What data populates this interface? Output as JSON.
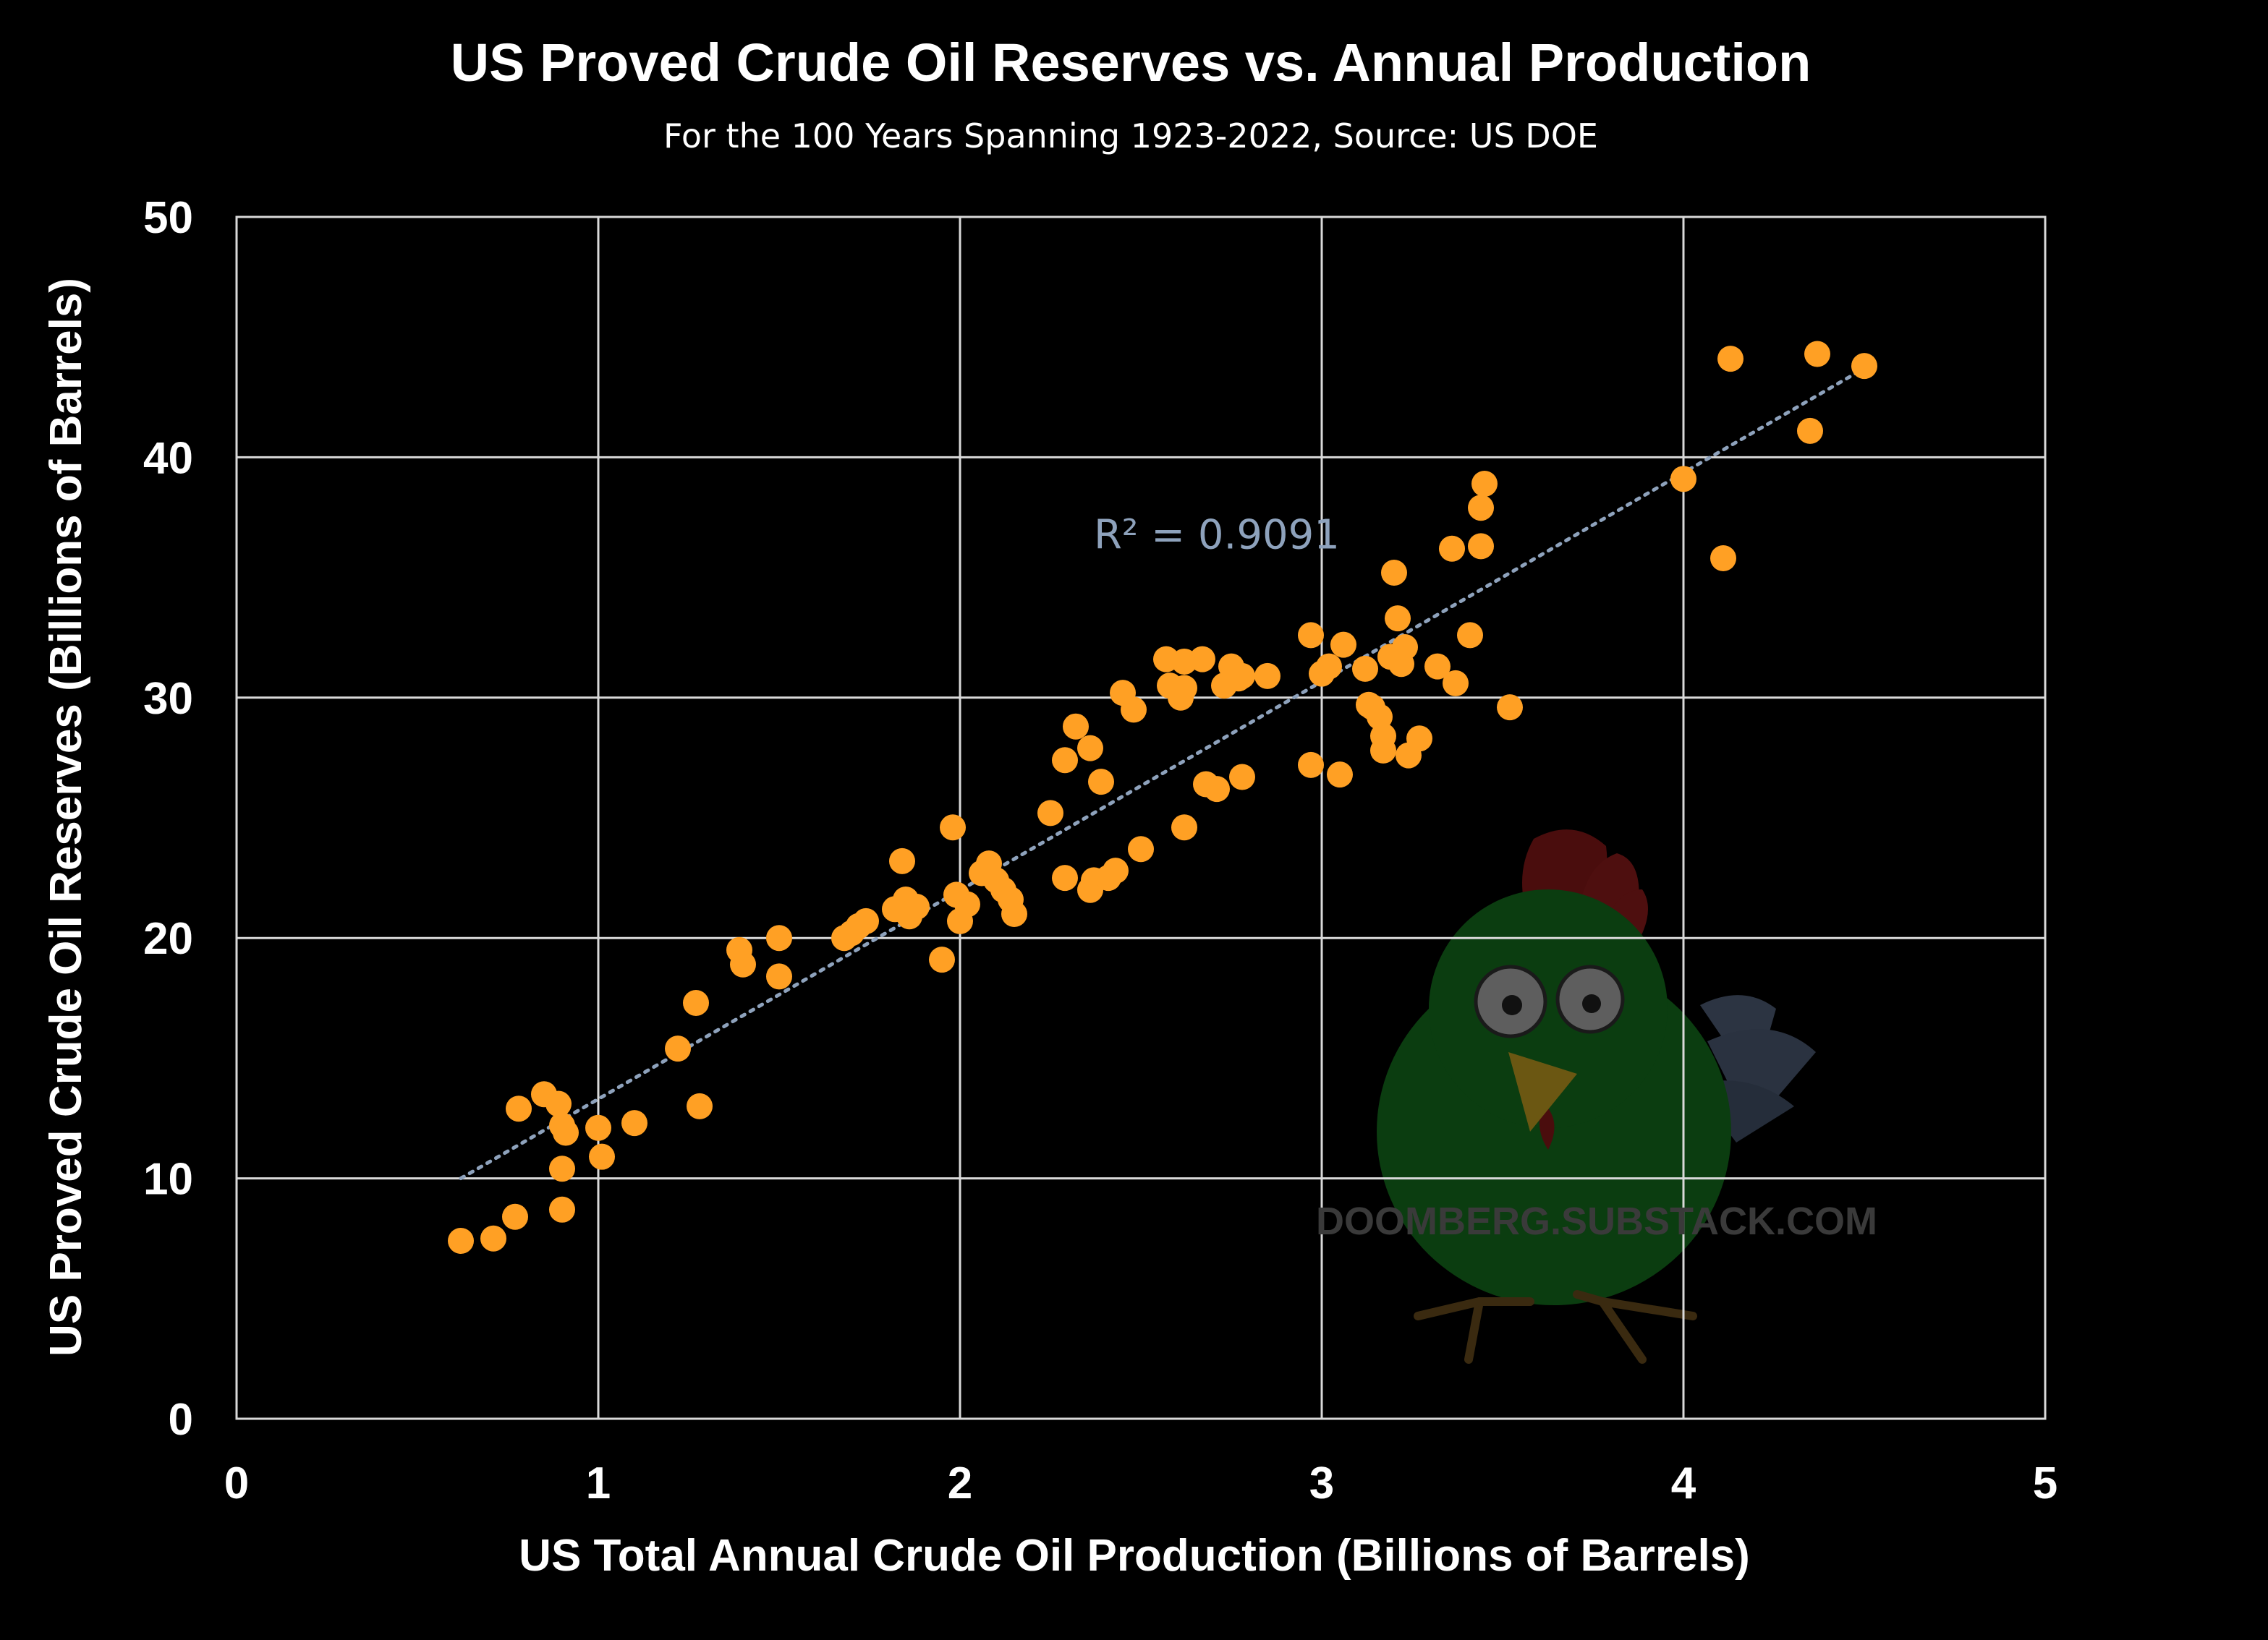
{
  "chart_data": {
    "type": "scatter",
    "title": "US Proved Crude Oil Reserves vs. Annual Production",
    "subtitle": "For the 100 Years Spanning 1923-2022, Source: US DOE",
    "xlabel": "US Total Annual Crude Oil Production (Billions of Barrels)",
    "ylabel": "US Proved Crude Oil Reserves (Billions of Barrels)",
    "xlim": [
      0,
      5
    ],
    "ylim": [
      0,
      50
    ],
    "x_ticks": [
      "0",
      "1",
      "2",
      "3",
      "4",
      "5"
    ],
    "y_ticks": [
      "0",
      "10",
      "20",
      "30",
      "40",
      "50"
    ],
    "grid": true,
    "point_color": "#FFA024",
    "trendline": {
      "type": "linear",
      "x_start": 0.62,
      "y_start": 10.0,
      "x_end": 4.5,
      "y_end": 43.7,
      "color": "#8EA2BC",
      "style": "dotted"
    },
    "annotation": {
      "text": "R² = 0.9091",
      "x": 2.37,
      "y": 36.2,
      "color": "#8EA2BC"
    },
    "watermark": {
      "text": "DOOMBERG.SUBSTACK.COM",
      "color": "#3A3A3A"
    },
    "points": [
      [
        0.62,
        7.4
      ],
      [
        0.71,
        7.5
      ],
      [
        0.77,
        8.4
      ],
      [
        0.78,
        12.9
      ],
      [
        0.85,
        13.5
      ],
      [
        0.89,
        13.1
      ],
      [
        0.9,
        12.2
      ],
      [
        0.91,
        11.9
      ],
      [
        0.9,
        10.4
      ],
      [
        0.9,
        8.7
      ],
      [
        1.0,
        12.1
      ],
      [
        1.01,
        10.9
      ],
      [
        1.1,
        12.3
      ],
      [
        1.22,
        15.4
      ],
      [
        1.27,
        17.3
      ],
      [
        1.28,
        13.0
      ],
      [
        1.39,
        19.5
      ],
      [
        1.4,
        18.9
      ],
      [
        1.5,
        20.0
      ],
      [
        1.5,
        18.4
      ],
      [
        1.68,
        20.0
      ],
      [
        1.7,
        20.2
      ],
      [
        1.72,
        20.5
      ],
      [
        1.74,
        20.7
      ],
      [
        1.82,
        21.2
      ],
      [
        1.84,
        23.2
      ],
      [
        1.85,
        21.6
      ],
      [
        1.86,
        20.9
      ],
      [
        1.88,
        21.3
      ],
      [
        1.95,
        19.1
      ],
      [
        1.98,
        24.6
      ],
      [
        1.99,
        21.8
      ],
      [
        2.0,
        20.7
      ],
      [
        2.02,
        21.4
      ],
      [
        2.06,
        22.7
      ],
      [
        2.08,
        23.1
      ],
      [
        2.1,
        22.4
      ],
      [
        2.12,
        22.0
      ],
      [
        2.14,
        21.6
      ],
      [
        2.15,
        21.0
      ],
      [
        2.25,
        25.2
      ],
      [
        2.29,
        22.5
      ],
      [
        2.29,
        27.4
      ],
      [
        2.32,
        28.8
      ],
      [
        2.36,
        27.9
      ],
      [
        2.36,
        22.0
      ],
      [
        2.37,
        22.4
      ],
      [
        2.39,
        26.5
      ],
      [
        2.41,
        22.5
      ],
      [
        2.43,
        22.8
      ],
      [
        2.45,
        30.2
      ],
      [
        2.48,
        29.5
      ],
      [
        2.5,
        23.7
      ],
      [
        2.57,
        31.6
      ],
      [
        2.58,
        30.5
      ],
      [
        2.61,
        30.0
      ],
      [
        2.62,
        31.5
      ],
      [
        2.62,
        30.4
      ],
      [
        2.62,
        24.6
      ],
      [
        2.67,
        31.6
      ],
      [
        2.68,
        26.4
      ],
      [
        2.71,
        26.2
      ],
      [
        2.73,
        30.5
      ],
      [
        2.75,
        31.3
      ],
      [
        2.77,
        30.8
      ],
      [
        2.78,
        30.9
      ],
      [
        2.78,
        26.7
      ],
      [
        2.85,
        30.9
      ],
      [
        2.97,
        32.6
      ],
      [
        2.97,
        27.2
      ],
      [
        3.0,
        31.0
      ],
      [
        3.02,
        31.3
      ],
      [
        3.05,
        26.8
      ],
      [
        3.06,
        32.2
      ],
      [
        3.12,
        31.2
      ],
      [
        3.13,
        29.7
      ],
      [
        3.14,
        29.6
      ],
      [
        3.16,
        29.2
      ],
      [
        3.17,
        28.4
      ],
      [
        3.17,
        27.8
      ],
      [
        3.19,
        31.7
      ],
      [
        3.2,
        35.2
      ],
      [
        3.21,
        33.3
      ],
      [
        3.22,
        31.4
      ],
      [
        3.23,
        32.1
      ],
      [
        3.24,
        27.6
      ],
      [
        3.27,
        28.3
      ],
      [
        3.32,
        31.3
      ],
      [
        3.36,
        36.2
      ],
      [
        3.37,
        30.6
      ],
      [
        3.41,
        32.6
      ],
      [
        3.44,
        36.3
      ],
      [
        3.44,
        37.9
      ],
      [
        3.45,
        38.9
      ],
      [
        3.52,
        29.6
      ],
      [
        4.0,
        39.1
      ],
      [
        4.11,
        35.8
      ],
      [
        4.13,
        44.1
      ],
      [
        4.35,
        41.1
      ],
      [
        4.37,
        44.3
      ],
      [
        4.5,
        43.8
      ]
    ]
  }
}
